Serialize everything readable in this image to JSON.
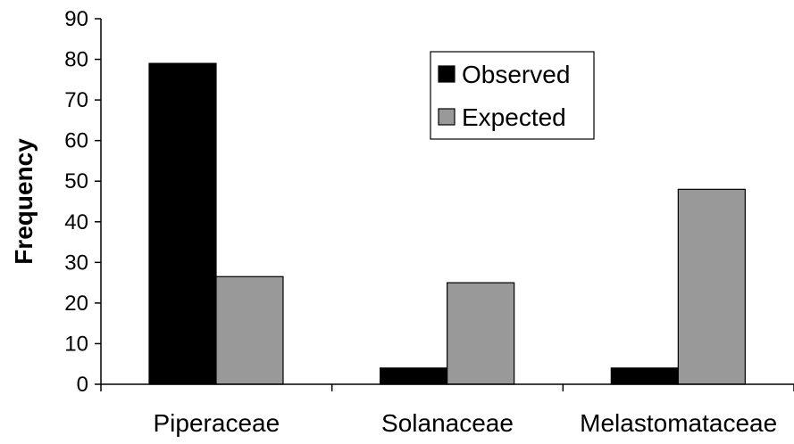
{
  "chart_data": {
    "type": "bar",
    "title": "",
    "xlabel": "",
    "ylabel": "Frequency",
    "categories": [
      "Piperaceae",
      "Solanaceae",
      "Melastomataceae"
    ],
    "series": [
      {
        "name": "Observed",
        "values": [
          79,
          4,
          4
        ],
        "color": "#000000"
      },
      {
        "name": "Expected",
        "values": [
          26.5,
          25,
          48
        ],
        "color": "#999999"
      }
    ],
    "ylim": [
      0,
      90
    ],
    "yticks": [
      0,
      10,
      20,
      30,
      40,
      50,
      60,
      70,
      80,
      90
    ],
    "grid": false,
    "legend_position": "top-right"
  }
}
